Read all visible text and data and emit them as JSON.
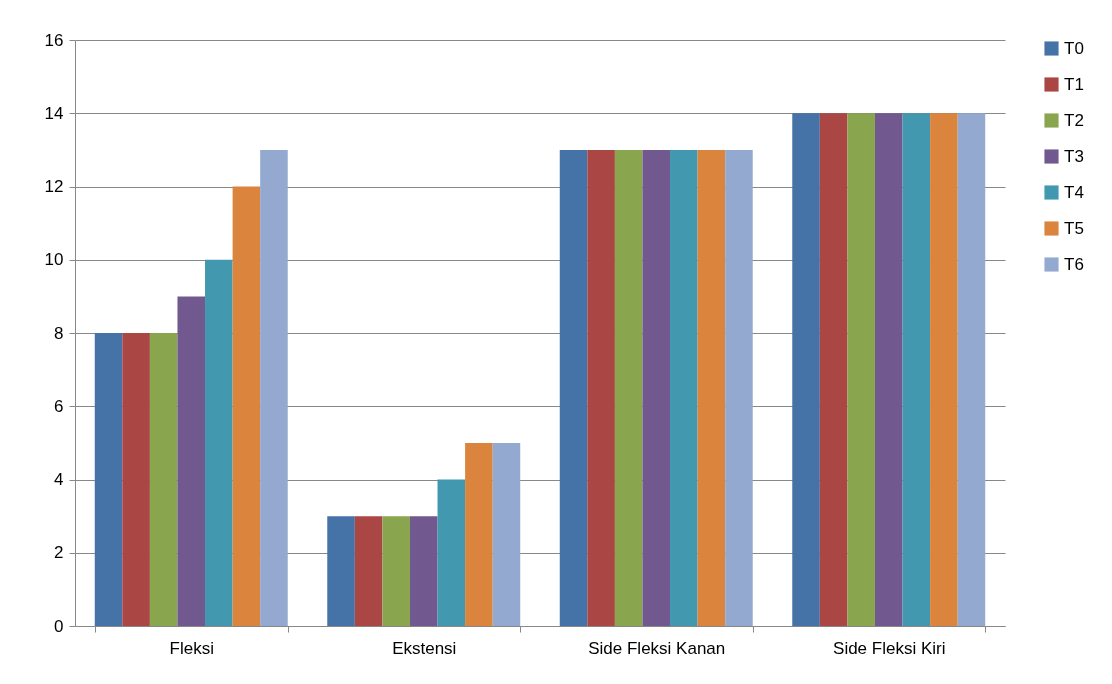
{
  "chart_data": {
    "type": "bar",
    "categories": [
      "Fleksi",
      "Ekstensi",
      "Side Fleksi Kanan",
      "Side Fleksi Kiri"
    ],
    "series": [
      {
        "name": "T0",
        "color": "#4572a7",
        "values": [
          8,
          3,
          13,
          14
        ]
      },
      {
        "name": "T1",
        "color": "#aa4643",
        "values": [
          8,
          3,
          13,
          14
        ]
      },
      {
        "name": "T2",
        "color": "#89a54e",
        "values": [
          8,
          3,
          13,
          14
        ]
      },
      {
        "name": "T3",
        "color": "#71588f",
        "values": [
          9,
          3,
          13,
          14
        ]
      },
      {
        "name": "T4",
        "color": "#4198af",
        "values": [
          10,
          4,
          13,
          14
        ]
      },
      {
        "name": "T5",
        "color": "#db843d",
        "values": [
          12,
          5,
          13,
          14
        ]
      },
      {
        "name": "T6",
        "color": "#93a9cf",
        "values": [
          13,
          5,
          13,
          14
        ]
      }
    ],
    "ylim": [
      0,
      16
    ],
    "yticks": [
      0,
      2,
      4,
      6,
      8,
      10,
      12,
      14,
      16
    ],
    "grid": "y",
    "legend": "right"
  }
}
